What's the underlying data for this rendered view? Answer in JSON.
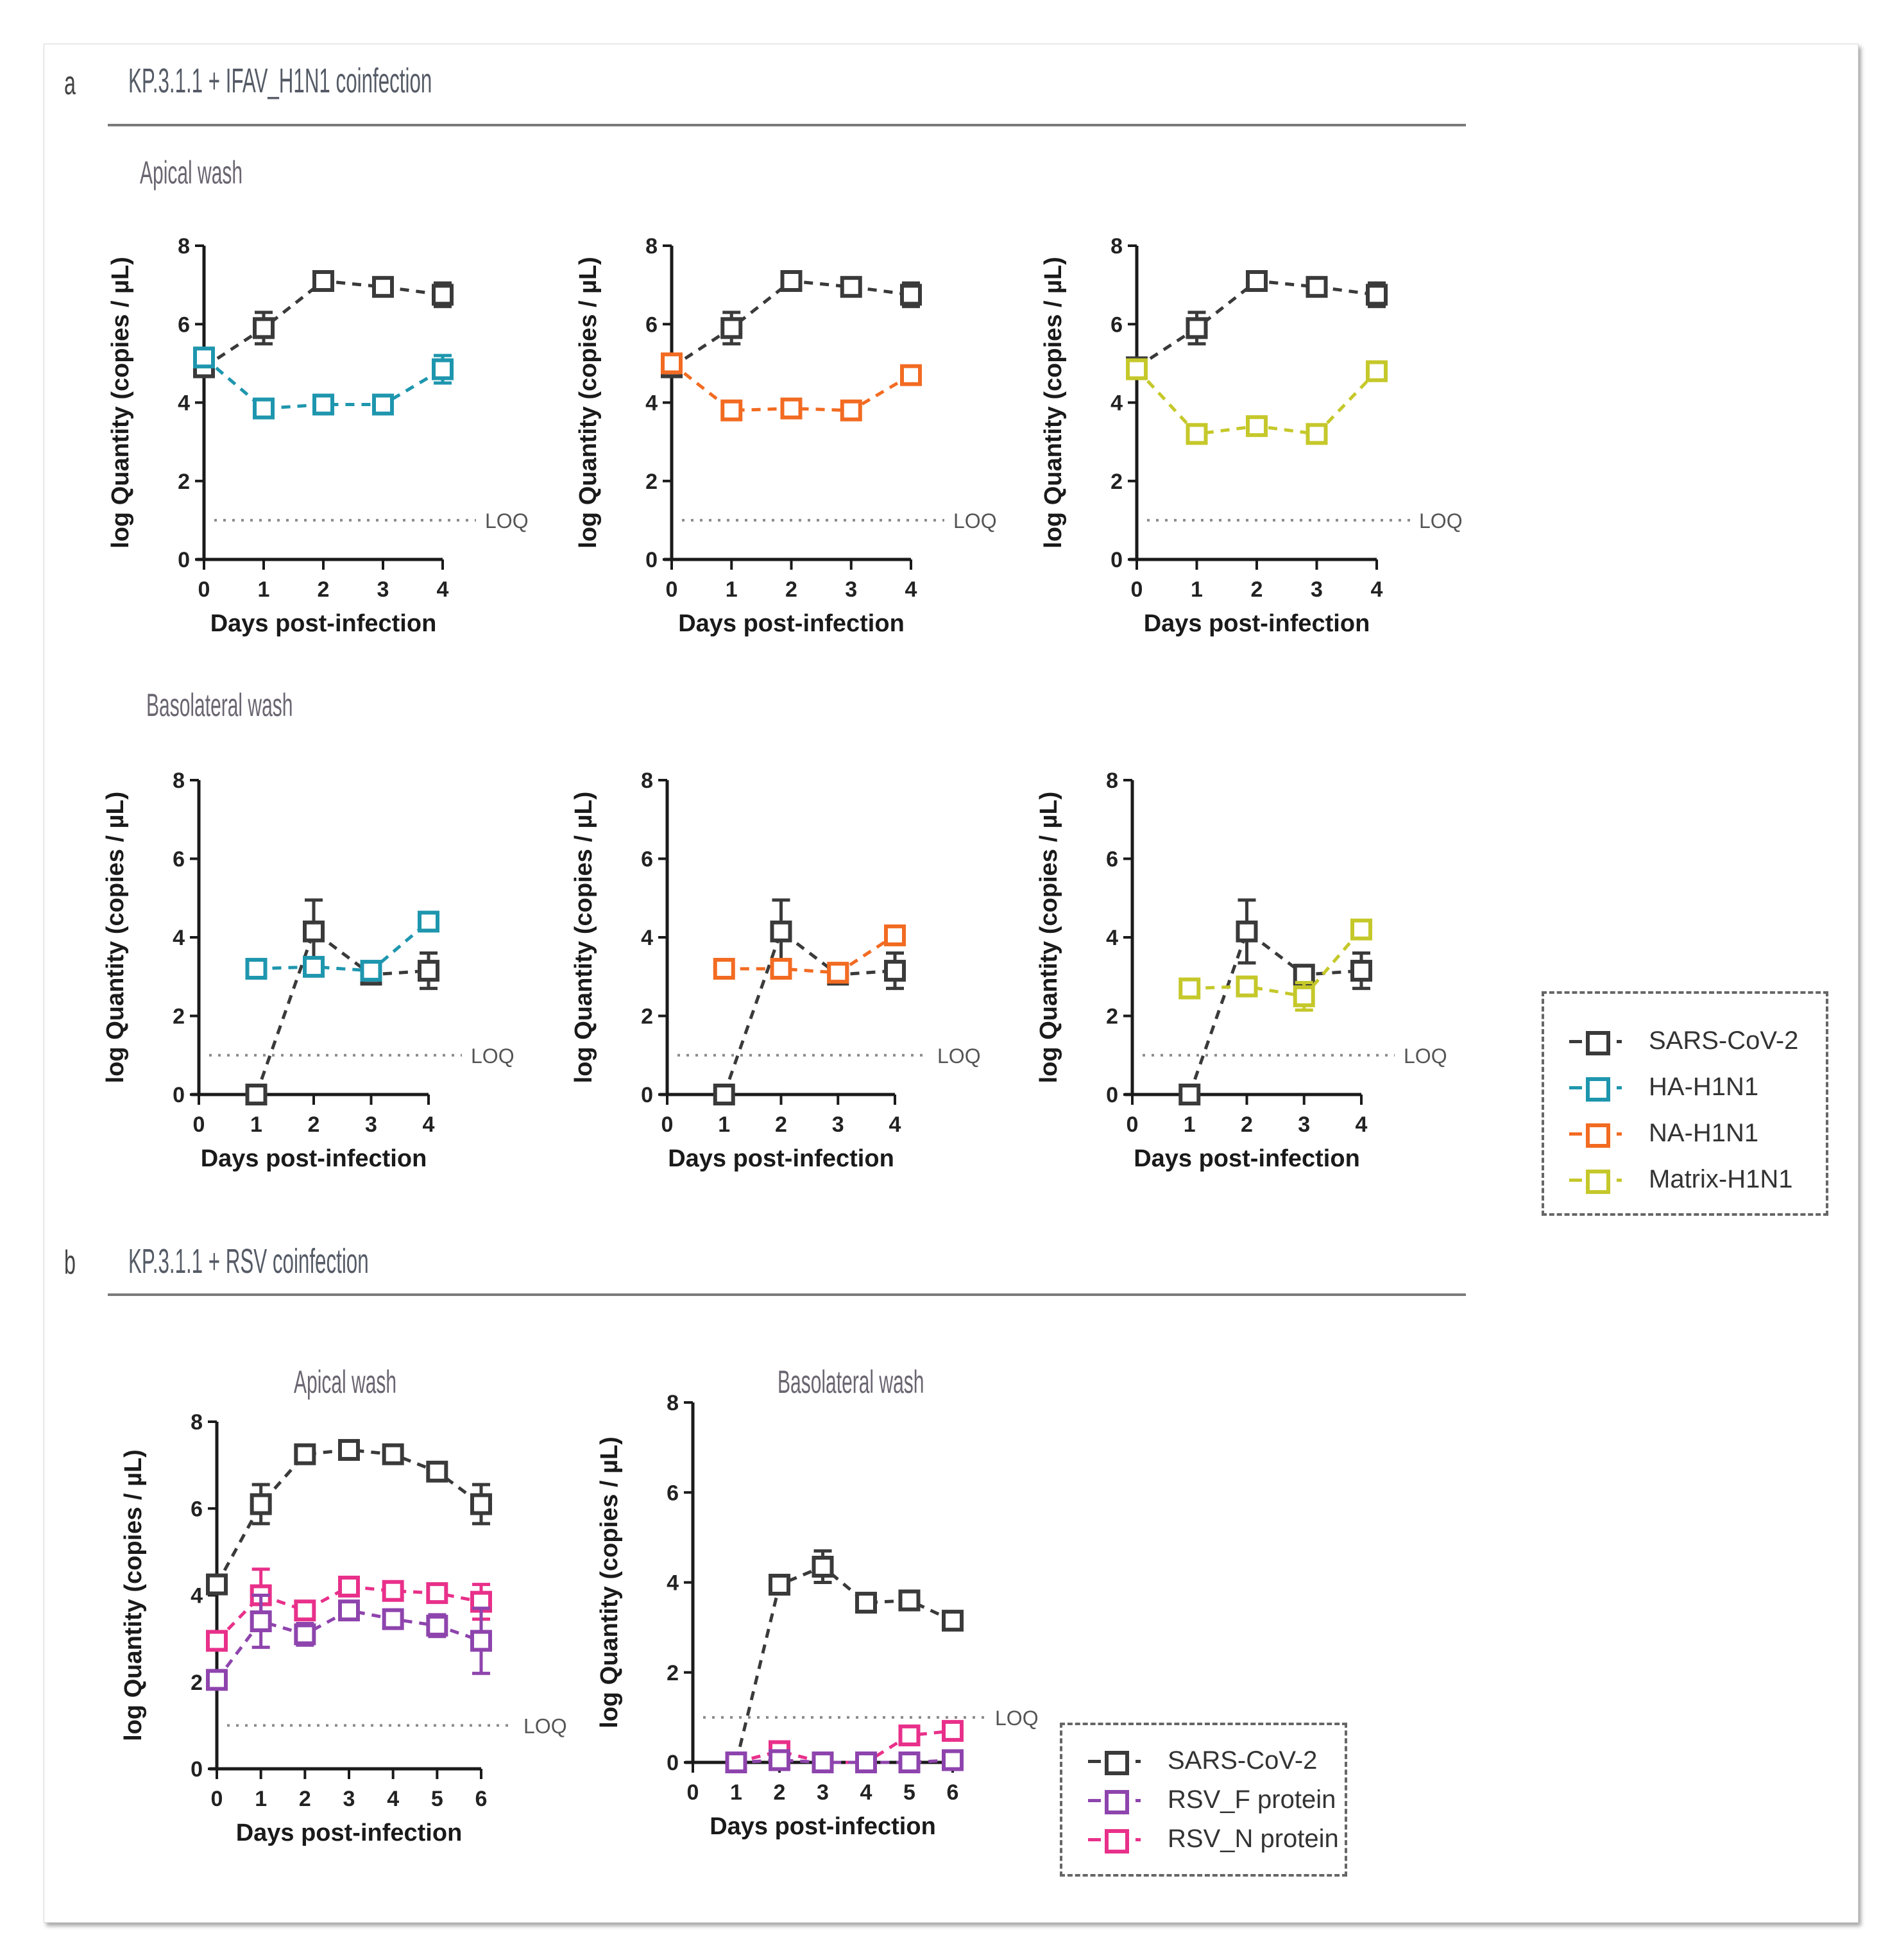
{
  "colors": {
    "sars": "#3a3a3a",
    "ha": "#1e96ae",
    "na": "#f26b22",
    "matrix": "#c5c82a",
    "rsv_f": "#8e44ad",
    "rsv_n": "#e8308a",
    "loq": "#8a8a8a"
  },
  "panel_a": {
    "letter": "a",
    "title": "KP.3.1.1 + IFAV_H1N1 coinfection",
    "apical_label": "Apical wash",
    "basolateral_label": "Basolateral wash",
    "legend": [
      {
        "key": "sars",
        "label": "SARS-CoV-2"
      },
      {
        "key": "ha",
        "label": "HA-H1N1"
      },
      {
        "key": "na",
        "label": "NA-H1N1"
      },
      {
        "key": "matrix",
        "label": "Matrix-H1N1"
      }
    ]
  },
  "panel_b": {
    "letter": "b",
    "title": "KP.3.1.1 + RSV coinfection",
    "apical_label": "Apical wash",
    "basolateral_label": "Basolateral wash",
    "legend": [
      {
        "key": "sars",
        "label": "SARS-CoV-2"
      },
      {
        "key": "rsv_f",
        "label": "RSV_F protein"
      },
      {
        "key": "rsv_n",
        "label": "RSV_N protein"
      }
    ]
  },
  "chart_data": [
    {
      "id": "a-apical-ha",
      "type": "line",
      "panel": "a",
      "wash": "Apical wash",
      "xlabel": "Days post-infection",
      "ylabel": "log Quantity (copies / µL)",
      "xlim": [
        0,
        4
      ],
      "ylim": [
        0,
        8
      ],
      "xticks": [
        0,
        1,
        2,
        3,
        4
      ],
      "yticks": [
        0,
        2,
        4,
        6,
        8
      ],
      "loq": 1,
      "loq_label": "LOQ",
      "series": [
        {
          "key": "sars",
          "name": "SARS-CoV-2",
          "x": [
            0,
            1,
            2,
            3,
            4
          ],
          "y": [
            4.9,
            5.9,
            7.1,
            6.95,
            6.75
          ],
          "err": [
            0,
            0.4,
            0,
            0,
            0.3
          ]
        },
        {
          "key": "ha",
          "name": "HA-H1N1",
          "x": [
            0,
            1,
            2,
            3,
            4
          ],
          "y": [
            5.15,
            3.85,
            3.95,
            3.95,
            4.85
          ],
          "err": [
            0,
            0,
            0,
            0,
            0.35
          ]
        }
      ]
    },
    {
      "id": "a-apical-na",
      "type": "line",
      "panel": "a",
      "wash": "Apical wash",
      "xlabel": "Days post-infection",
      "ylabel": "log Quantity (copies / µL)",
      "xlim": [
        0,
        4
      ],
      "ylim": [
        0,
        8
      ],
      "xticks": [
        0,
        1,
        2,
        3,
        4
      ],
      "yticks": [
        0,
        2,
        4,
        6,
        8
      ],
      "loq": 1,
      "loq_label": "LOQ",
      "series": [
        {
          "key": "sars",
          "name": "SARS-CoV-2",
          "x": [
            0,
            1,
            2,
            3,
            4
          ],
          "y": [
            4.9,
            5.9,
            7.1,
            6.95,
            6.75
          ],
          "err": [
            0,
            0.4,
            0,
            0,
            0.3
          ]
        },
        {
          "key": "na",
          "name": "NA-H1N1",
          "x": [
            0,
            1,
            2,
            3,
            4
          ],
          "y": [
            5.0,
            3.8,
            3.85,
            3.8,
            4.7
          ],
          "err": [
            0,
            0,
            0,
            0,
            0
          ]
        }
      ]
    },
    {
      "id": "a-apical-matrix",
      "type": "line",
      "panel": "a",
      "wash": "Apical wash",
      "xlabel": "Days post-infection",
      "ylabel": "log Quantity (copies / µL)",
      "xlim": [
        0,
        4
      ],
      "ylim": [
        0,
        8
      ],
      "xticks": [
        0,
        1,
        2,
        3,
        4
      ],
      "yticks": [
        0,
        2,
        4,
        6,
        8
      ],
      "loq": 1,
      "loq_label": "LOQ",
      "series": [
        {
          "key": "sars",
          "name": "SARS-CoV-2",
          "x": [
            0,
            1,
            2,
            3,
            4
          ],
          "y": [
            4.9,
            5.9,
            7.1,
            6.95,
            6.75
          ],
          "err": [
            0,
            0.4,
            0,
            0,
            0.3
          ]
        },
        {
          "key": "matrix",
          "name": "Matrix-H1N1",
          "x": [
            0,
            1,
            2,
            3,
            4
          ],
          "y": [
            4.85,
            3.2,
            3.4,
            3.2,
            4.8
          ],
          "err": [
            0,
            0,
            0,
            0,
            0
          ]
        }
      ]
    },
    {
      "id": "a-baso-ha",
      "type": "line",
      "panel": "a",
      "wash": "Basolateral wash",
      "xlabel": "Days post-infection",
      "ylabel": "log Quantity (copies / µL)",
      "xlim": [
        0,
        4
      ],
      "ylim": [
        0,
        8
      ],
      "xticks": [
        0,
        1,
        2,
        3,
        4
      ],
      "yticks": [
        0,
        2,
        4,
        6,
        8
      ],
      "loq": 1,
      "loq_label": "LOQ",
      "series": [
        {
          "key": "sars",
          "name": "SARS-CoV-2",
          "x": [
            1,
            2,
            3,
            4
          ],
          "y": [
            0,
            4.15,
            3.05,
            3.15
          ],
          "err": [
            0,
            0.8,
            0,
            0.45
          ]
        },
        {
          "key": "ha",
          "name": "HA-H1N1",
          "x": [
            1,
            2,
            3,
            4
          ],
          "y": [
            3.2,
            3.25,
            3.15,
            4.4
          ],
          "err": [
            0,
            0,
            0,
            0
          ]
        }
      ]
    },
    {
      "id": "a-baso-na",
      "type": "line",
      "panel": "a",
      "wash": "Basolateral wash",
      "xlabel": "Days post-infection",
      "ylabel": "log Quantity (copies / µL)",
      "xlim": [
        0,
        4
      ],
      "ylim": [
        0,
        8
      ],
      "xticks": [
        0,
        1,
        2,
        3,
        4
      ],
      "yticks": [
        0,
        2,
        4,
        6,
        8
      ],
      "loq": 1,
      "loq_label": "LOQ",
      "series": [
        {
          "key": "sars",
          "name": "SARS-CoV-2",
          "x": [
            1,
            2,
            3,
            4
          ],
          "y": [
            0,
            4.15,
            3.05,
            3.15
          ],
          "err": [
            0,
            0.8,
            0,
            0.45
          ]
        },
        {
          "key": "na",
          "name": "NA-H1N1",
          "x": [
            1,
            2,
            3,
            4
          ],
          "y": [
            3.2,
            3.2,
            3.1,
            4.05
          ],
          "err": [
            0,
            0,
            0,
            0
          ]
        }
      ]
    },
    {
      "id": "a-baso-matrix",
      "type": "line",
      "panel": "a",
      "wash": "Basolateral wash",
      "xlabel": "Days post-infection",
      "ylabel": "log Quantity (copies / µL)",
      "xlim": [
        0,
        4
      ],
      "ylim": [
        0,
        8
      ],
      "xticks": [
        0,
        1,
        2,
        3,
        4
      ],
      "yticks": [
        0,
        2,
        4,
        6,
        8
      ],
      "loq": 1,
      "loq_label": "LOQ",
      "series": [
        {
          "key": "sars",
          "name": "SARS-CoV-2",
          "x": [
            1,
            2,
            3,
            4
          ],
          "y": [
            0,
            4.15,
            3.05,
            3.15
          ],
          "err": [
            0,
            0.8,
            0,
            0.45
          ]
        },
        {
          "key": "matrix",
          "name": "Matrix-H1N1",
          "x": [
            1,
            2,
            3,
            4
          ],
          "y": [
            2.7,
            2.75,
            2.5,
            4.2
          ],
          "err": [
            0,
            0,
            0.35,
            0
          ]
        }
      ]
    },
    {
      "id": "b-apical",
      "type": "line",
      "panel": "b",
      "wash": "Apical wash",
      "title": "Apical wash",
      "xlabel": "Days post-infection",
      "ylabel": "log Quantity (copies / µL)",
      "xlim": [
        0,
        6
      ],
      "ylim": [
        0,
        8
      ],
      "xticks": [
        0,
        1,
        2,
        3,
        4,
        5,
        6
      ],
      "yticks": [
        0,
        2,
        4,
        6,
        8
      ],
      "loq": 1,
      "loq_label": "LOQ",
      "series": [
        {
          "key": "sars",
          "name": "SARS-CoV-2",
          "x": [
            0,
            1,
            2,
            3,
            4,
            5,
            6
          ],
          "y": [
            4.25,
            6.1,
            7.25,
            7.35,
            7.25,
            6.85,
            6.1
          ],
          "err": [
            0,
            0.45,
            0,
            0,
            0,
            0.15,
            0.45
          ]
        },
        {
          "key": "rsv_n",
          "name": "RSV_N protein",
          "x": [
            0,
            1,
            2,
            3,
            4,
            5,
            6
          ],
          "y": [
            2.95,
            4.0,
            3.65,
            4.2,
            4.1,
            4.05,
            3.85
          ],
          "err": [
            0,
            0.6,
            0.15,
            0.15,
            0,
            0.2,
            0.4
          ]
        },
        {
          "key": "rsv_f",
          "name": "RSV_F protein",
          "x": [
            0,
            1,
            2,
            3,
            4,
            5,
            6
          ],
          "y": [
            2.05,
            3.4,
            3.1,
            3.65,
            3.45,
            3.3,
            2.95
          ],
          "err": [
            0,
            0.6,
            0.25,
            0.15,
            0,
            0.25,
            0.75
          ]
        }
      ]
    },
    {
      "id": "b-basolateral",
      "type": "line",
      "panel": "b",
      "wash": "Basolateral wash",
      "title": "Basolateral wash",
      "xlabel": "Days post-infection",
      "ylabel": "log Quantity (copies / µL)",
      "xlim": [
        0,
        6
      ],
      "ylim": [
        0,
        8
      ],
      "xticks": [
        0,
        1,
        2,
        3,
        4,
        5,
        6
      ],
      "yticks": [
        0,
        2,
        4,
        6,
        8
      ],
      "loq": 1,
      "loq_label": "LOQ",
      "series": [
        {
          "key": "sars",
          "name": "SARS-CoV-2",
          "x": [
            1,
            2,
            3,
            4,
            5,
            6
          ],
          "y": [
            0,
            3.95,
            4.35,
            3.55,
            3.6,
            3.15
          ],
          "err": [
            0,
            0,
            0.35,
            0,
            0,
            0.1
          ]
        },
        {
          "key": "rsv_n",
          "name": "RSV_N protein",
          "x": [
            1,
            2,
            3,
            4,
            5,
            6
          ],
          "y": [
            0,
            0.25,
            0,
            0,
            0.6,
            0.7
          ],
          "err": [
            0,
            0.15,
            0,
            0,
            0.1,
            0
          ]
        },
        {
          "key": "rsv_f",
          "name": "RSV_F protein",
          "x": [
            1,
            2,
            3,
            4,
            5,
            6
          ],
          "y": [
            0,
            0.05,
            0,
            0,
            0,
            0.05
          ],
          "err": [
            0,
            0,
            0,
            0,
            0,
            0
          ]
        }
      ]
    }
  ]
}
